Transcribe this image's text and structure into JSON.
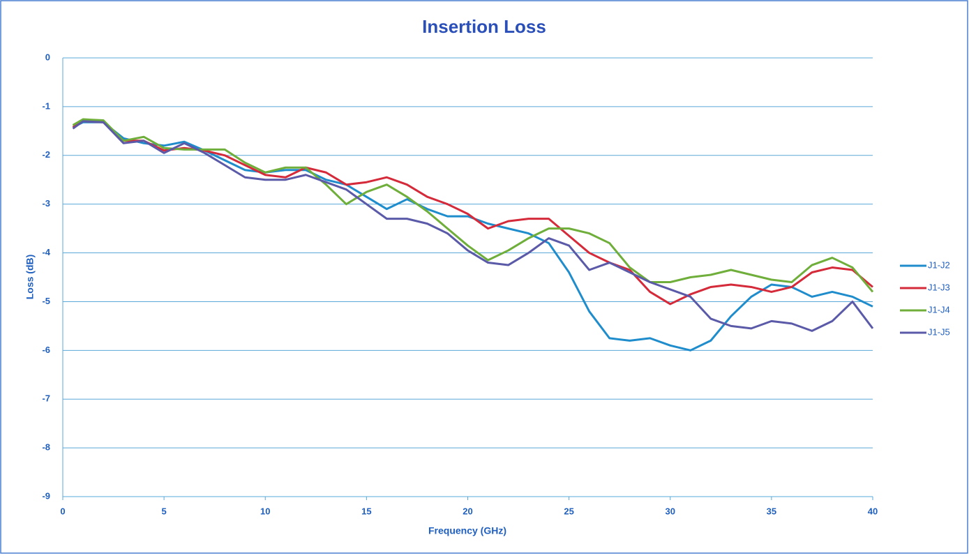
{
  "chart_data": {
    "type": "line",
    "title": "Insertion Loss",
    "x_label": "Frequency (GHz)",
    "y_label": "Loss (dB)",
    "x": [
      0.5,
      1,
      2,
      3,
      4,
      5,
      6,
      7,
      8,
      9,
      10,
      11,
      12,
      13,
      14,
      15,
      16,
      17,
      18,
      19,
      20,
      21,
      22,
      23,
      24,
      25,
      26,
      27,
      28,
      29,
      30,
      31,
      32,
      33,
      34,
      35,
      36,
      37,
      38,
      39,
      40
    ],
    "series": [
      {
        "name": "J1-J2",
        "color": "#1f8ccc",
        "values": [
          -1.42,
          -1.32,
          -1.32,
          -1.65,
          -1.75,
          -1.8,
          -1.72,
          -1.9,
          -2.1,
          -2.3,
          -2.35,
          -2.3,
          -2.3,
          -2.5,
          -2.6,
          -2.85,
          -3.1,
          -2.9,
          -3.1,
          -3.25,
          -3.25,
          -3.4,
          -3.5,
          -3.6,
          -3.8,
          -4.4,
          -5.2,
          -5.75,
          -5.8,
          -5.75,
          -5.9,
          -6.0,
          -5.8,
          -5.3,
          -4.9,
          -4.65,
          -4.7,
          -4.9,
          -4.8,
          -4.9,
          -5.1
        ]
      },
      {
        "name": "J1-J3",
        "color": "#d42a3a",
        "values": [
          -1.42,
          -1.3,
          -1.32,
          -1.7,
          -1.7,
          -1.9,
          -1.85,
          -1.9,
          -2.0,
          -2.2,
          -2.4,
          -2.45,
          -2.25,
          -2.35,
          -2.6,
          -2.55,
          -2.45,
          -2.6,
          -2.85,
          -3.0,
          -3.2,
          -3.5,
          -3.35,
          -3.3,
          -3.3,
          -3.65,
          -4.0,
          -4.2,
          -4.35,
          -4.8,
          -5.05,
          -4.85,
          -4.7,
          -4.65,
          -4.7,
          -4.8,
          -4.7,
          -4.4,
          -4.3,
          -4.35,
          -4.7
        ]
      },
      {
        "name": "J1-J4",
        "color": "#6fae3a",
        "values": [
          -1.38,
          -1.26,
          -1.28,
          -1.7,
          -1.62,
          -1.85,
          -1.88,
          -1.88,
          -1.88,
          -2.15,
          -2.35,
          -2.25,
          -2.25,
          -2.6,
          -3.0,
          -2.75,
          -2.6,
          -2.85,
          -3.15,
          -3.5,
          -3.85,
          -4.15,
          -3.95,
          -3.7,
          -3.5,
          -3.5,
          -3.6,
          -3.8,
          -4.3,
          -4.6,
          -4.6,
          -4.5,
          -4.45,
          -4.35,
          -4.45,
          -4.55,
          -4.6,
          -4.25,
          -4.1,
          -4.3,
          -4.8
        ]
      },
      {
        "name": "J1-J5",
        "color": "#5a5aa8",
        "values": [
          -1.45,
          -1.3,
          -1.32,
          -1.75,
          -1.7,
          -1.95,
          -1.75,
          -1.95,
          -2.2,
          -2.45,
          -2.5,
          -2.5,
          -2.4,
          -2.55,
          -2.7,
          -3.0,
          -3.3,
          -3.3,
          -3.4,
          -3.6,
          -3.95,
          -4.2,
          -4.25,
          -4.0,
          -3.7,
          -3.85,
          -4.35,
          -4.2,
          -4.4,
          -4.6,
          -4.75,
          -4.9,
          -5.35,
          -5.5,
          -5.55,
          -5.4,
          -5.45,
          -5.6,
          -5.4,
          -5.0,
          -5.55
        ]
      }
    ],
    "xlim": [
      0,
      40
    ],
    "xticks": [
      0,
      5,
      10,
      15,
      20,
      25,
      30,
      35,
      40
    ],
    "ylim": [
      -9,
      0
    ],
    "yticks": [
      0,
      -1,
      -2,
      -3,
      -4,
      -5,
      -6,
      -7,
      -8,
      -9
    ],
    "grid": true,
    "legend": "right"
  }
}
